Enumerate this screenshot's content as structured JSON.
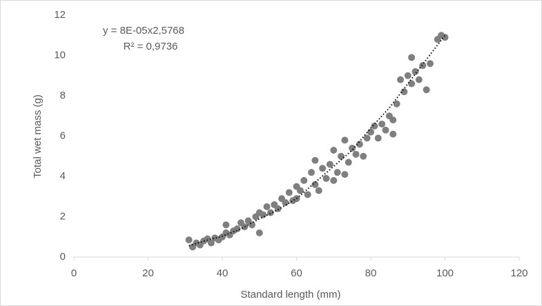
{
  "chart_data": {
    "type": "scatter",
    "x_label": "Standard length (mm)",
    "y_label": "Total wet mass (g)",
    "annotations": [
      "y = 8E-05x2,5768",
      "R² = 0,9736"
    ],
    "x": [
      31,
      32,
      33,
      34,
      35,
      36,
      37,
      38,
      39,
      40,
      41,
      41,
      42,
      43,
      44,
      45,
      46,
      47,
      48,
      49,
      50,
      50,
      51,
      52,
      53,
      54,
      55,
      56,
      57,
      58,
      59,
      60,
      60,
      61,
      62,
      63,
      64,
      65,
      65,
      66,
      67,
      68,
      69,
      70,
      70,
      71,
      72,
      73,
      73,
      74,
      75,
      76,
      77,
      78,
      79,
      80,
      81,
      82,
      83,
      84,
      85,
      86,
      86,
      87,
      88,
      89,
      90,
      91,
      91,
      92,
      93,
      94,
      95,
      96,
      98,
      99,
      100
    ],
    "values": [
      0.85,
      0.5,
      0.7,
      0.6,
      0.8,
      0.9,
      0.7,
      0.95,
      0.85,
      1.0,
      1.2,
      1.6,
      1.1,
      1.3,
      1.4,
      1.7,
      1.5,
      1.8,
      1.6,
      2.0,
      1.2,
      2.2,
      2.1,
      2.5,
      2.2,
      2.6,
      2.4,
      2.9,
      2.7,
      3.2,
      2.8,
      3.5,
      2.9,
      3.3,
      3.8,
      3.1,
      4.2,
      3.6,
      4.8,
      3.3,
      4.4,
      3.9,
      4.6,
      5.3,
      3.8,
      4.2,
      5.0,
      5.8,
      4.1,
      4.7,
      5.4,
      5.1,
      5.6,
      5.0,
      5.9,
      6.2,
      6.5,
      5.9,
      6.6,
      6.3,
      7.0,
      6.1,
      6.8,
      7.6,
      8.8,
      8.2,
      9.0,
      9.9,
      8.6,
      9.2,
      8.8,
      9.5,
      8.3,
      9.6,
      10.8,
      11.0,
      10.9
    ],
    "color": "#7f7f7f",
    "trendline": {
      "x": [
        31,
        35,
        40,
        45,
        50,
        55,
        60,
        65,
        70,
        75,
        80,
        85,
        90,
        95,
        100
      ],
      "values": [
        0.56,
        0.79,
        1.04,
        1.4,
        1.9,
        2.35,
        2.9,
        3.7,
        4.5,
        5.3,
        6.4,
        7.4,
        8.6,
        9.8,
        11.0
      ],
      "color": "#000000"
    },
    "xlim": [
      0,
      120
    ],
    "xticks": [
      0,
      20,
      40,
      60,
      80,
      100,
      120
    ],
    "ylim": [
      0,
      12
    ],
    "yticks": [
      0,
      2,
      4,
      6,
      8,
      10,
      12
    ],
    "grid": false
  }
}
